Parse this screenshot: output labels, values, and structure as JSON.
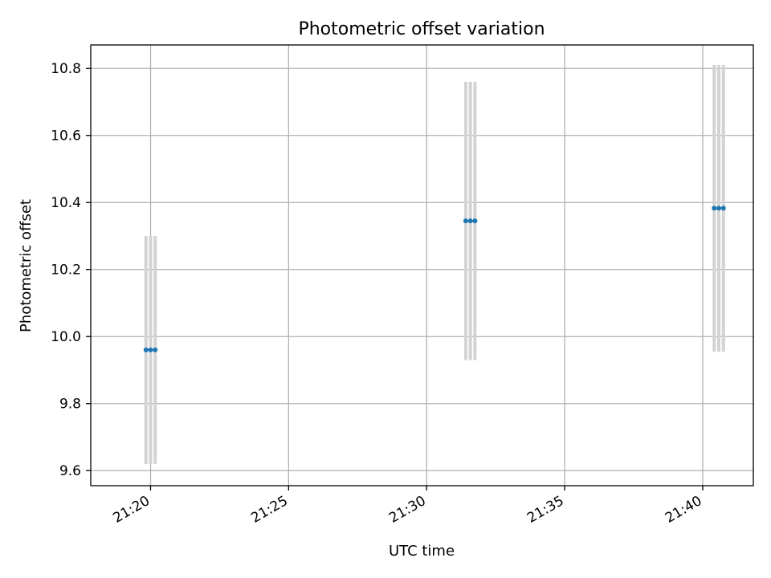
{
  "chart_data": {
    "type": "scatter",
    "title": "Photometric offset variation",
    "xlabel": "UTC time",
    "ylabel": "Photometric offset",
    "xlim": [
      "21:17:50",
      "21:41:50"
    ],
    "ylim": [
      9.555,
      10.87
    ],
    "x_ticks": [
      "21:20",
      "21:25",
      "21:30",
      "21:35",
      "21:40"
    ],
    "y_ticks": [
      "9.6",
      "9.8",
      "10.0",
      "10.2",
      "10.4",
      "10.6",
      "10.8"
    ],
    "grid": true,
    "colors": {
      "points": "#1f77b4",
      "error_bars": "#d3d3d3",
      "grid": "#b0b0b0"
    },
    "series": [
      {
        "points": [
          {
            "x": "21:19:50",
            "y": 9.96,
            "ylow": 9.62,
            "yhigh": 10.3
          },
          {
            "x": "21:20:00",
            "y": 9.96,
            "ylow": 9.62,
            "yhigh": 10.3
          },
          {
            "x": "21:20:10",
            "y": 9.96,
            "ylow": 9.62,
            "yhigh": 10.3
          },
          {
            "x": "21:31:25",
            "y": 10.345,
            "ylow": 9.93,
            "yhigh": 10.76
          },
          {
            "x": "21:31:35",
            "y": 10.345,
            "ylow": 9.93,
            "yhigh": 10.76
          },
          {
            "x": "21:31:45",
            "y": 10.345,
            "ylow": 9.93,
            "yhigh": 10.76
          },
          {
            "x": "21:40:25",
            "y": 10.383,
            "ylow": 9.955,
            "yhigh": 10.81
          },
          {
            "x": "21:40:35",
            "y": 10.383,
            "ylow": 9.955,
            "yhigh": 10.81
          },
          {
            "x": "21:40:45",
            "y": 10.383,
            "ylow": 9.955,
            "yhigh": 10.81
          }
        ]
      }
    ]
  }
}
